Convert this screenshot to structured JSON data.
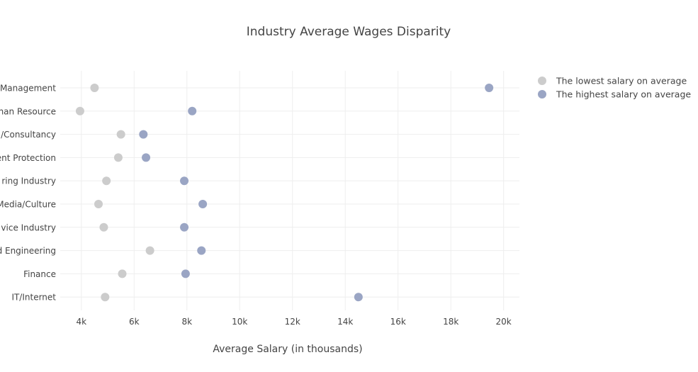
{
  "chart_data": {
    "type": "scatter",
    "title": "Industry Average Wages Disparity",
    "xlabel": "Average Salary (in thousands)",
    "ylabel": "",
    "xlim": [
      3200,
      20600
    ],
    "xticks": [
      4000,
      6000,
      8000,
      10000,
      12000,
      14000,
      16000,
      18000,
      20000
    ],
    "xtick_labels": [
      "4k",
      "6k",
      "8k",
      "10k",
      "12k",
      "14k",
      "16k",
      "18k",
      "20k"
    ],
    "categories": [
      "IT/Internet",
      "Finance",
      "d Engineering",
      "vice Industry",
      "Media/Culture",
      "ring Industry",
      "ent Protection",
      "/Consultancy",
      "nan Resource",
      "Management"
    ],
    "series": [
      {
        "name": "The lowest salary on average",
        "color": "#cccccc",
        "values": [
          4900,
          5550,
          6600,
          4850,
          4650,
          4950,
          5400,
          5500,
          3950,
          4500
        ]
      },
      {
        "name": "The highest salary on average",
        "color": "#9aa5c4",
        "values": [
          14500,
          7950,
          8550,
          7900,
          8600,
          7900,
          6450,
          6350,
          8200,
          19450
        ]
      }
    ],
    "grid": true,
    "legend_position": "top-right"
  }
}
